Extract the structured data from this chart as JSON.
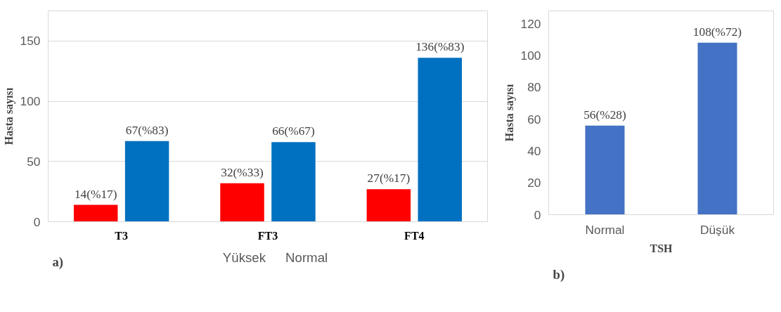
{
  "chart_data": [
    {
      "type": "bar",
      "categories": [
        "T3",
        "FT3",
        "FT4"
      ],
      "ylabel": "Hasta sayısı",
      "ylim": [
        0,
        175
      ],
      "yticks": [
        0,
        50,
        100,
        150
      ],
      "grid": "y",
      "legend": "bottom",
      "annotations": [
        "a)"
      ],
      "series": [
        {
          "name": "Yüksek",
          "color": "#ff0000",
          "values": [
            14,
            32,
            27
          ],
          "value_labels": [
            "14(%17)",
            "32(%33)",
            "27(%17)"
          ]
        },
        {
          "name": "Normal",
          "color": "#0070c0",
          "values": [
            67,
            66,
            136
          ],
          "value_labels": [
            "67(%83)",
            "66(%67)",
            "136(%83)"
          ]
        }
      ]
    },
    {
      "type": "bar",
      "categories": [
        "Normal",
        "Düşük"
      ],
      "xlabel": "TSH",
      "ylabel": "Hasta sayısı",
      "ylim": [
        0,
        128
      ],
      "yticks": [
        0,
        20,
        40,
        60,
        80,
        100,
        120
      ],
      "annotations": [
        "b)"
      ],
      "series": [
        {
          "color": "#4472c4",
          "values": [
            56,
            108
          ],
          "value_labels": [
            "56(%28)",
            "108(%72)"
          ]
        }
      ]
    }
  ]
}
